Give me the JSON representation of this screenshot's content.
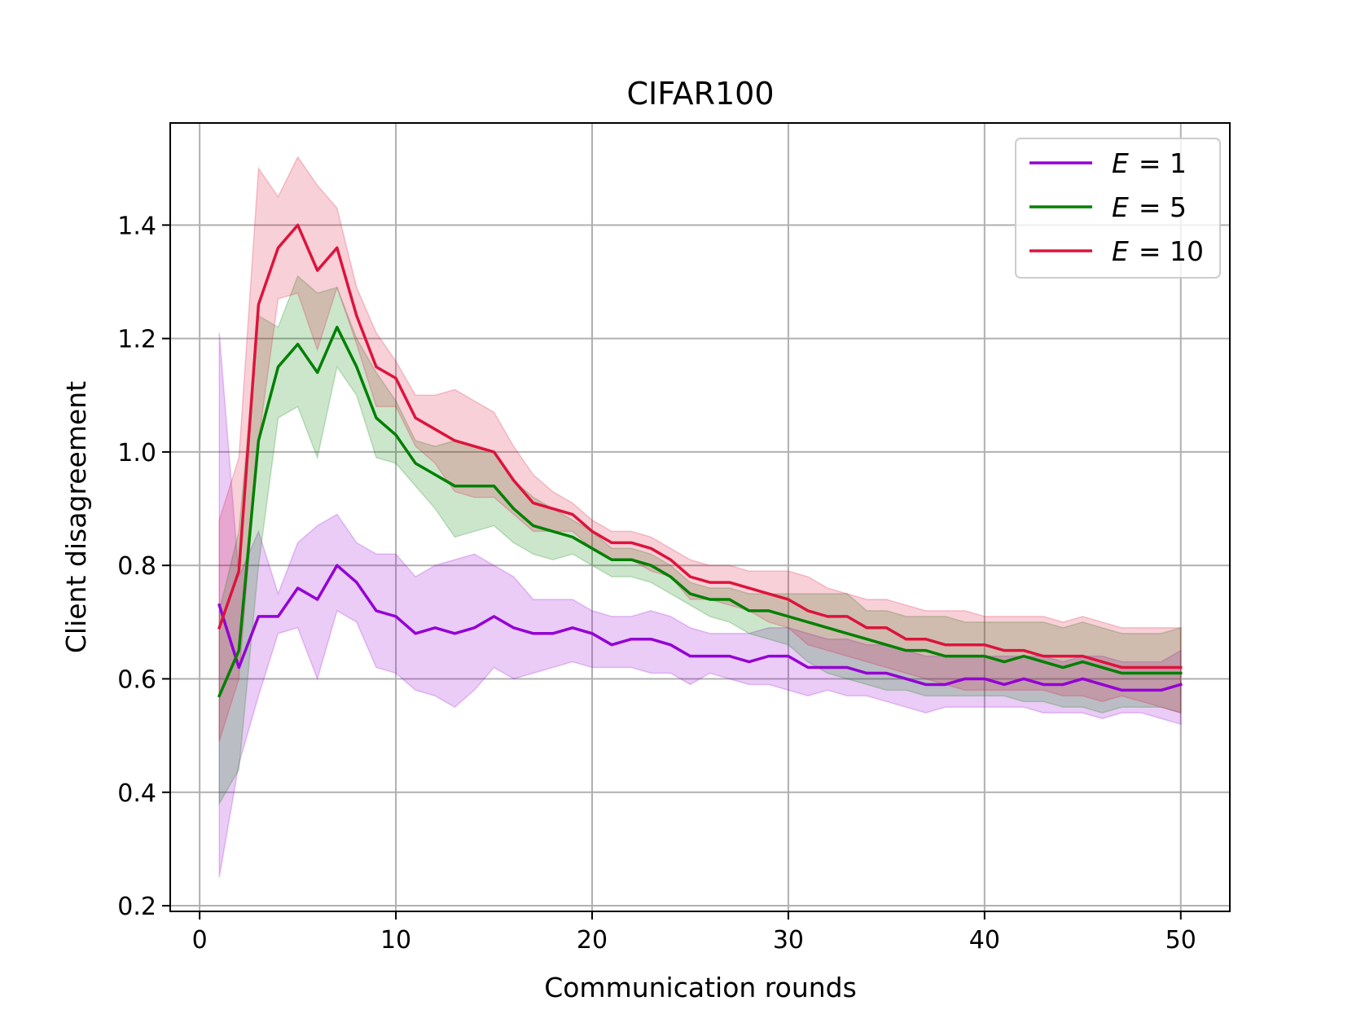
{
  "chart_data": {
    "type": "line",
    "title": "CIFAR100",
    "xlabel": "Communication rounds",
    "ylabel": "Client disagreement",
    "xlim": [
      -1.5,
      52.5
    ],
    "ylim": [
      0.19,
      1.58
    ],
    "grid": true,
    "legend_position": "top-right",
    "x_ticks": [
      0,
      10,
      20,
      30,
      40,
      50
    ],
    "x_tick_labels": [
      "0",
      "10",
      "20",
      "30",
      "40",
      "50"
    ],
    "y_ticks": [
      0.2,
      0.4,
      0.6,
      0.8,
      1.0,
      1.2,
      1.4
    ],
    "y_tick_labels": [
      "0.2",
      "0.4",
      "0.6",
      "0.8",
      "1.0",
      "1.2",
      "1.4"
    ],
    "x": [
      1,
      2,
      3,
      4,
      5,
      6,
      7,
      8,
      9,
      10,
      11,
      12,
      13,
      14,
      15,
      16,
      17,
      18,
      19,
      20,
      21,
      22,
      23,
      24,
      25,
      26,
      27,
      28,
      29,
      30,
      31,
      32,
      33,
      34,
      35,
      36,
      37,
      38,
      39,
      40,
      41,
      42,
      43,
      44,
      45,
      46,
      47,
      48,
      49,
      50
    ],
    "series": [
      {
        "name": "E = 1",
        "legend_symbol": "E",
        "legend_value": "= 1",
        "color": "#9400d3",
        "values": [
          0.73,
          0.62,
          0.71,
          0.71,
          0.76,
          0.74,
          0.8,
          0.77,
          0.72,
          0.71,
          0.68,
          0.69,
          0.68,
          0.69,
          0.71,
          0.69,
          0.68,
          0.68,
          0.69,
          0.68,
          0.66,
          0.67,
          0.67,
          0.66,
          0.64,
          0.64,
          0.64,
          0.63,
          0.64,
          0.64,
          0.62,
          0.62,
          0.62,
          0.61,
          0.61,
          0.6,
          0.59,
          0.59,
          0.6,
          0.6,
          0.59,
          0.6,
          0.59,
          0.59,
          0.6,
          0.59,
          0.58,
          0.58,
          0.58,
          0.59
        ],
        "lower": [
          0.25,
          0.45,
          0.57,
          0.68,
          0.69,
          0.6,
          0.72,
          0.7,
          0.62,
          0.61,
          0.58,
          0.57,
          0.55,
          0.58,
          0.62,
          0.6,
          0.61,
          0.62,
          0.63,
          0.62,
          0.62,
          0.62,
          0.61,
          0.61,
          0.59,
          0.61,
          0.6,
          0.59,
          0.59,
          0.58,
          0.57,
          0.58,
          0.57,
          0.57,
          0.56,
          0.55,
          0.54,
          0.55,
          0.55,
          0.55,
          0.55,
          0.55,
          0.54,
          0.54,
          0.54,
          0.53,
          0.54,
          0.54,
          0.53,
          0.52
        ],
        "upper": [
          1.21,
          0.78,
          0.86,
          0.75,
          0.84,
          0.87,
          0.89,
          0.84,
          0.82,
          0.82,
          0.78,
          0.8,
          0.81,
          0.82,
          0.8,
          0.78,
          0.74,
          0.74,
          0.74,
          0.72,
          0.71,
          0.71,
          0.72,
          0.71,
          0.69,
          0.68,
          0.68,
          0.68,
          0.69,
          0.69,
          0.68,
          0.67,
          0.67,
          0.66,
          0.66,
          0.65,
          0.64,
          0.64,
          0.64,
          0.64,
          0.64,
          0.64,
          0.64,
          0.63,
          0.64,
          0.64,
          0.63,
          0.63,
          0.63,
          0.65
        ]
      },
      {
        "name": "E = 5",
        "legend_symbol": "E",
        "legend_value": "= 5",
        "color": "#008000",
        "values": [
          0.57,
          0.65,
          1.02,
          1.15,
          1.19,
          1.14,
          1.22,
          1.15,
          1.06,
          1.03,
          0.98,
          0.96,
          0.94,
          0.94,
          0.94,
          0.9,
          0.87,
          0.86,
          0.85,
          0.83,
          0.81,
          0.81,
          0.8,
          0.78,
          0.75,
          0.74,
          0.74,
          0.72,
          0.72,
          0.71,
          0.7,
          0.69,
          0.68,
          0.67,
          0.66,
          0.65,
          0.65,
          0.64,
          0.64,
          0.64,
          0.63,
          0.64,
          0.63,
          0.62,
          0.63,
          0.62,
          0.61,
          0.61,
          0.61,
          0.61
        ],
        "lower": [
          0.38,
          0.44,
          0.8,
          1.06,
          1.08,
          0.99,
          1.15,
          1.1,
          0.99,
          0.98,
          0.94,
          0.9,
          0.85,
          0.86,
          0.87,
          0.84,
          0.82,
          0.81,
          0.82,
          0.8,
          0.78,
          0.78,
          0.77,
          0.75,
          0.73,
          0.71,
          0.7,
          0.68,
          0.67,
          0.66,
          0.63,
          0.61,
          0.6,
          0.59,
          0.58,
          0.58,
          0.57,
          0.57,
          0.57,
          0.57,
          0.57,
          0.56,
          0.56,
          0.55,
          0.55,
          0.54,
          0.55,
          0.55,
          0.55,
          0.54
        ],
        "upper": [
          0.72,
          0.86,
          1.24,
          1.22,
          1.31,
          1.28,
          1.29,
          1.2,
          1.14,
          1.09,
          1.02,
          1.01,
          1.02,
          1.01,
          1.0,
          0.95,
          0.92,
          0.9,
          0.88,
          0.86,
          0.83,
          0.83,
          0.82,
          0.8,
          0.77,
          0.76,
          0.76,
          0.75,
          0.75,
          0.75,
          0.75,
          0.75,
          0.75,
          0.72,
          0.72,
          0.71,
          0.71,
          0.71,
          0.7,
          0.7,
          0.7,
          0.7,
          0.7,
          0.69,
          0.7,
          0.69,
          0.68,
          0.68,
          0.68,
          0.69
        ]
      },
      {
        "name": "E = 10",
        "legend_symbol": "E",
        "legend_value": "= 10",
        "color": "#dc143c",
        "values": [
          0.69,
          0.79,
          1.26,
          1.36,
          1.4,
          1.32,
          1.36,
          1.24,
          1.15,
          1.13,
          1.06,
          1.04,
          1.02,
          1.01,
          1.0,
          0.95,
          0.91,
          0.9,
          0.89,
          0.86,
          0.84,
          0.84,
          0.83,
          0.81,
          0.78,
          0.77,
          0.77,
          0.76,
          0.75,
          0.74,
          0.72,
          0.71,
          0.71,
          0.69,
          0.69,
          0.67,
          0.67,
          0.66,
          0.66,
          0.66,
          0.65,
          0.65,
          0.64,
          0.64,
          0.64,
          0.63,
          0.62,
          0.62,
          0.62,
          0.62
        ],
        "lower": [
          0.49,
          0.6,
          1.02,
          1.27,
          1.28,
          1.18,
          1.29,
          1.19,
          1.08,
          1.08,
          1.01,
          0.98,
          0.93,
          0.92,
          0.92,
          0.89,
          0.86,
          0.86,
          0.86,
          0.83,
          0.81,
          0.81,
          0.79,
          0.78,
          0.74,
          0.74,
          0.73,
          0.72,
          0.7,
          0.69,
          0.66,
          0.65,
          0.64,
          0.63,
          0.62,
          0.61,
          0.6,
          0.59,
          0.58,
          0.58,
          0.58,
          0.58,
          0.58,
          0.57,
          0.57,
          0.56,
          0.57,
          0.56,
          0.55,
          0.54
        ],
        "upper": [
          0.88,
          0.99,
          1.5,
          1.45,
          1.52,
          1.47,
          1.43,
          1.29,
          1.21,
          1.16,
          1.1,
          1.1,
          1.11,
          1.09,
          1.07,
          1.01,
          0.96,
          0.93,
          0.91,
          0.88,
          0.86,
          0.86,
          0.85,
          0.83,
          0.81,
          0.8,
          0.8,
          0.79,
          0.79,
          0.79,
          0.78,
          0.76,
          0.75,
          0.74,
          0.74,
          0.73,
          0.72,
          0.72,
          0.72,
          0.71,
          0.71,
          0.71,
          0.71,
          0.7,
          0.71,
          0.7,
          0.69,
          0.69,
          0.69,
          0.69
        ]
      }
    ]
  }
}
